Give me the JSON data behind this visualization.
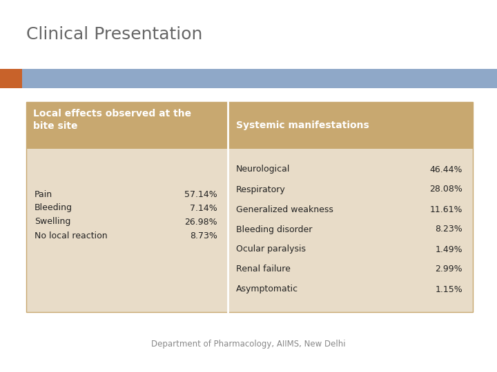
{
  "title": "Clinical Presentation",
  "title_fontsize": 18,
  "title_color": "#666666",
  "bg_color": "#ffffff",
  "header_bar_color": "#8fa8c8",
  "header_bar_accent": "#c8622a",
  "table_header_color": "#c8a870",
  "table_body_color": "#e8dcc8",
  "col1_header": "Local effects observed at the\nbite site",
  "col2_header": "Systemic manifestations",
  "local_effects": [
    [
      "Pain",
      "57.14%"
    ],
    [
      "Bleeding",
      "7.14%"
    ],
    [
      "Swelling",
      "26.98%"
    ],
    [
      "No local reaction",
      "8.73%"
    ]
  ],
  "systemic_effects": [
    [
      "Neurological",
      "46.44%"
    ],
    [
      "Respiratory",
      "28.08%"
    ],
    [
      "Generalized weakness",
      "11.61%"
    ],
    [
      "Bleeding disorder",
      "8.23%"
    ],
    [
      "Ocular paralysis",
      "1.49%"
    ],
    [
      "Renal failure",
      "2.99%"
    ],
    [
      "Asymptomatic",
      "1.15%"
    ]
  ],
  "footer_text": "Department of Pharmacology, AIIMS, New Delhi",
  "footer_fontsize": 8.5,
  "footer_color": "#888888",
  "text_color_header": "#ffffff",
  "text_color_body": "#222222",
  "header_fontsize": 10,
  "body_fontsize": 9
}
